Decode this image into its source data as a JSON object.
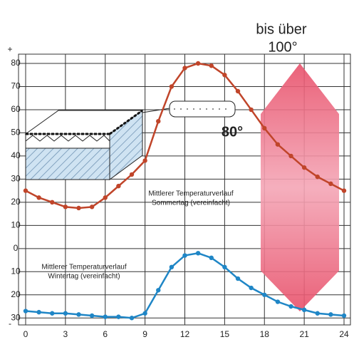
{
  "chart_data": {
    "type": "line",
    "x": [
      0,
      1,
      2,
      3,
      4,
      5,
      6,
      7,
      8,
      9,
      10,
      11,
      12,
      13,
      14,
      15,
      16,
      17,
      18,
      19,
      20,
      21,
      22,
      23,
      24
    ],
    "series": [
      {
        "color": "#c0452a",
        "values": [
          25,
          22,
          20,
          18,
          17.5,
          18,
          22,
          27,
          32,
          38,
          55,
          70,
          78,
          80,
          79,
          75,
          68,
          60,
          52,
          45,
          40,
          35,
          31,
          28,
          25
        ]
      },
      {
        "color": "#1f86c6",
        "values": [
          -27,
          -27.5,
          -28,
          -28,
          -28.5,
          -29,
          -29.5,
          -29.5,
          -30,
          -28,
          -18,
          -8,
          -3,
          -2,
          -4,
          -8,
          -13,
          -17,
          -20,
          -23,
          -25,
          -26.5,
          -28,
          -28.5,
          -29
        ]
      }
    ],
    "xlim": [
      0,
      24
    ],
    "ylim": [
      -33,
      84
    ],
    "xticks": [
      0,
      3,
      6,
      9,
      12,
      15,
      18,
      21,
      24
    ],
    "yticks": [
      80,
      70,
      60,
      50,
      40,
      30,
      20,
      10,
      0,
      {
        "value": -10,
        "label": "10"
      },
      {
        "value": -20,
        "label": "20"
      },
      {
        "value": -30,
        "label": "30"
      }
    ],
    "grid": true,
    "y_signs": [
      "+",
      "-"
    ],
    "annotations": {
      "max_top": "bis über",
      "max_bottom": "100°",
      "roof": "80°",
      "summer": [
        "Mittlerer Temperaturverlauf",
        "Sommertag (vereinfacht)"
      ],
      "winter": [
        "Mittlerer Temperaturverlauf",
        "Wintertag (vereinfacht)"
      ]
    }
  }
}
